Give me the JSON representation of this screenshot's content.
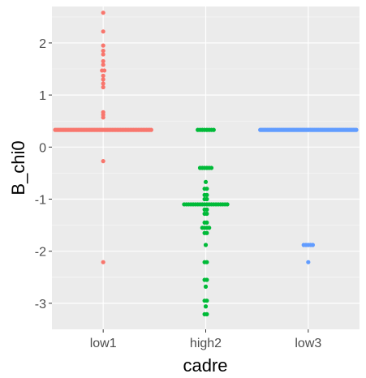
{
  "chart_data": {
    "type": "scatter",
    "subtype": "beeswarm",
    "title": "",
    "xlabel": "cadre",
    "ylabel": "B_chi0",
    "categories": [
      "low1",
      "high2",
      "low3"
    ],
    "ylim": [
      -3.5,
      2.7
    ],
    "yticks": [
      -3,
      -2,
      -1,
      0,
      1,
      2
    ],
    "grid": true,
    "legend": "none",
    "colors": {
      "low1": "#F8766D",
      "high2": "#00BA38",
      "low3": "#619CFF",
      "panel_bg": "#EBEBEB",
      "grid_major": "#FFFFFF"
    },
    "series": [
      {
        "category": "low1",
        "values": [
          {
            "y": 2.58,
            "count": 1
          },
          {
            "y": 2.22,
            "count": 1
          },
          {
            "y": 1.95,
            "count": 1
          },
          {
            "y": 1.85,
            "count": 1
          },
          {
            "y": 1.78,
            "count": 1
          },
          {
            "y": 1.65,
            "count": 1
          },
          {
            "y": 1.58,
            "count": 1
          },
          {
            "y": 1.47,
            "count": 2
          },
          {
            "y": 1.37,
            "count": 1
          },
          {
            "y": 1.3,
            "count": 1
          },
          {
            "y": 1.22,
            "count": 1
          },
          {
            "y": 1.15,
            "count": 1
          },
          {
            "y": 0.67,
            "count": 1
          },
          {
            "y": 0.62,
            "count": 1
          },
          {
            "y": 0.57,
            "count": 1
          },
          {
            "y": 0.33,
            "count": 60
          },
          {
            "y": -0.27,
            "count": 1
          },
          {
            "y": -2.21,
            "count": 1
          }
        ]
      },
      {
        "category": "high2",
        "values": [
          {
            "y": 0.33,
            "count": 8
          },
          {
            "y": -0.4,
            "count": 6
          },
          {
            "y": -0.67,
            "count": 1
          },
          {
            "y": -0.8,
            "count": 2
          },
          {
            "y": -0.92,
            "count": 2
          },
          {
            "y": -1.0,
            "count": 2
          },
          {
            "y": -1.1,
            "count": 20
          },
          {
            "y": -1.2,
            "count": 2
          },
          {
            "y": -1.28,
            "count": 2
          },
          {
            "y": -1.45,
            "count": 2
          },
          {
            "y": -1.55,
            "count": 4
          },
          {
            "y": -1.65,
            "count": 2
          },
          {
            "y": -1.88,
            "count": 1
          },
          {
            "y": -2.21,
            "count": 2
          },
          {
            "y": -2.55,
            "count": 2
          },
          {
            "y": -2.68,
            "count": 1
          },
          {
            "y": -2.95,
            "count": 2
          },
          {
            "y": -3.06,
            "count": 1
          },
          {
            "y": -3.21,
            "count": 2
          }
        ]
      },
      {
        "category": "low3",
        "values": [
          {
            "y": 0.33,
            "count": 70
          },
          {
            "y": -1.88,
            "count": 5
          },
          {
            "y": -2.21,
            "count": 1
          }
        ]
      }
    ]
  }
}
